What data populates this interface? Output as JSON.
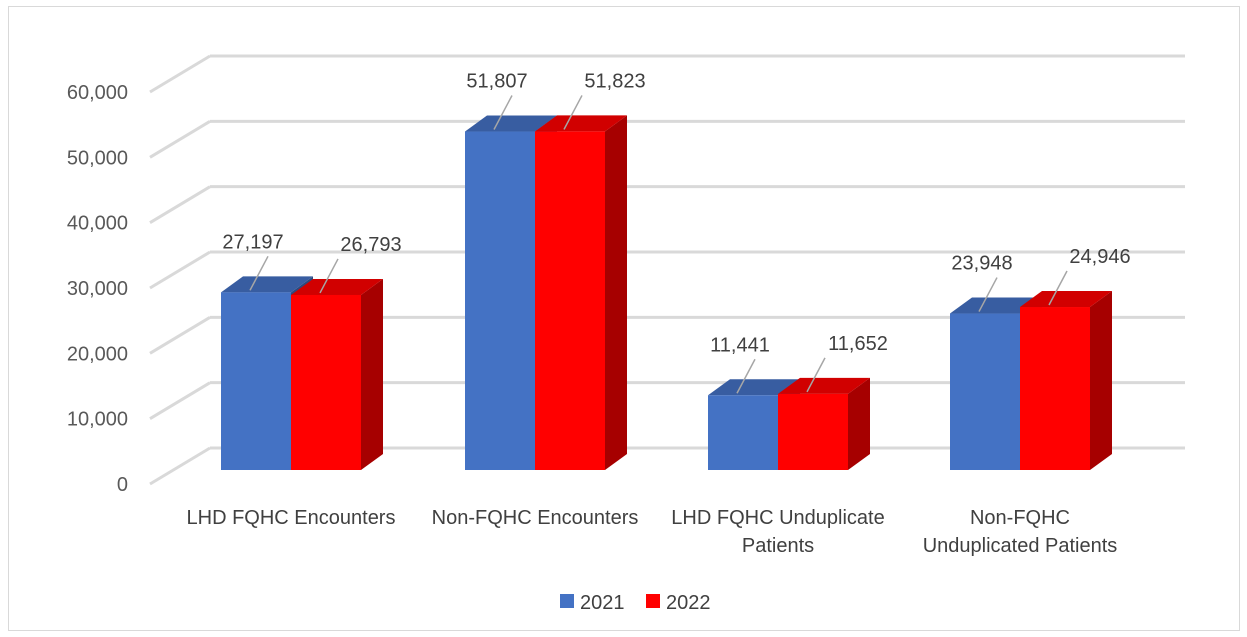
{
  "chart_data": {
    "type": "bar",
    "title": "",
    "xlabel": "",
    "ylabel": "",
    "ylim": [
      0,
      60000
    ],
    "yticks": [
      "0",
      "10,000",
      "20,000",
      "30,000",
      "40,000",
      "50,000",
      "60,000"
    ],
    "yticks_values": [
      0,
      10000,
      20000,
      30000,
      40000,
      50000,
      60000
    ],
    "grid": true,
    "legend_position": "bottom",
    "categories": [
      [
        "LHD FQHC Encounters"
      ],
      [
        "Non-FQHC Encounters"
      ],
      [
        "LHD FQHC Unduplicate",
        "Patients"
      ],
      [
        "Non-FQHC",
        "Unduplicated Patients"
      ]
    ],
    "series": [
      {
        "name": "2021",
        "color": "#4472c4",
        "values": [
          27197,
          51807,
          11441,
          23948
        ],
        "labels": [
          "27,197",
          "51,807",
          "11,441",
          "23,948"
        ]
      },
      {
        "name": "2022",
        "color": "#ff0000",
        "values": [
          26793,
          51823,
          11652,
          24946
        ],
        "labels": [
          "26,793",
          "51,823",
          "11,652",
          "24,946"
        ]
      }
    ]
  }
}
